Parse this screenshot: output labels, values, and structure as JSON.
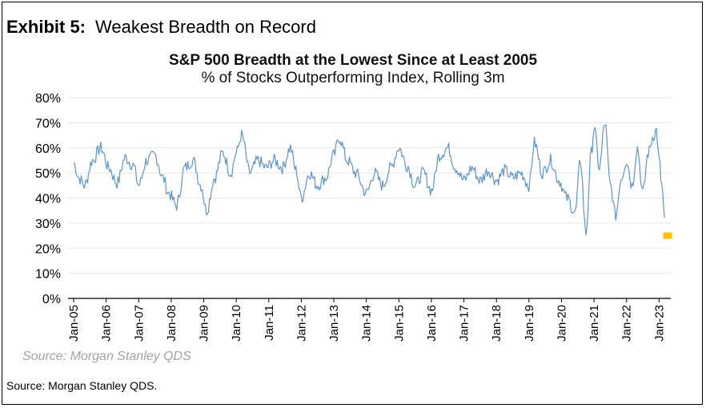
{
  "exhibit": {
    "number_label": "Exhibit 5:",
    "heading": "Weakest Breadth on Record"
  },
  "source_inner": "Source: Morgan Stanley QDS",
  "source_outer": "Source: Morgan Stanley QDS.",
  "colors": {
    "line": "#5b95d6",
    "marker": "#ffc000",
    "grid": "#e6e6e6",
    "axis": "#000000"
  },
  "chart_data": {
    "type": "line",
    "title": "S&P 500 Breadth at the Lowest Since at Least 2005",
    "subtitle": "% of Stocks Outperforming  Index, Rolling 3m",
    "ylim": [
      0,
      80
    ],
    "y_ticks": [
      "0%",
      "10%",
      "20%",
      "30%",
      "40%",
      "50%",
      "60%",
      "70%",
      "80%"
    ],
    "x_ticks": [
      "Jan-05",
      "Jan-06",
      "Jan-07",
      "Jan-08",
      "Jan-09",
      "Jan-10",
      "Jan-11",
      "Jan-12",
      "Jan-13",
      "Jan-14",
      "Jan-15",
      "Jan-16",
      "Jan-17",
      "Jan-18",
      "Jan-19",
      "Jan-20",
      "Jan-21",
      "Jan-22",
      "Jan-23"
    ],
    "x_range": [
      "2005-01",
      "2023-04"
    ],
    "grid": true,
    "series": [
      {
        "values": [
          [
            "2005-01",
            54
          ],
          [
            "2005-03",
            48
          ],
          [
            "2005-05",
            45
          ],
          [
            "2005-08",
            55
          ],
          [
            "2005-11",
            60
          ],
          [
            "2006-02",
            52
          ],
          [
            "2006-05",
            46
          ],
          [
            "2006-08",
            56
          ],
          [
            "2006-11",
            53
          ],
          [
            "2007-01",
            45
          ],
          [
            "2007-04",
            55
          ],
          [
            "2007-07",
            57
          ],
          [
            "2007-10",
            48
          ],
          [
            "2007-12",
            42
          ],
          [
            "2008-03",
            37
          ],
          [
            "2008-06",
            52
          ],
          [
            "2008-09",
            55
          ],
          [
            "2008-12",
            45
          ],
          [
            "2009-02",
            35
          ],
          [
            "2009-05",
            48
          ],
          [
            "2009-08",
            58
          ],
          [
            "2009-11",
            50
          ],
          [
            "2010-01",
            58
          ],
          [
            "2010-03",
            65
          ],
          [
            "2010-06",
            50
          ],
          [
            "2010-09",
            55
          ],
          [
            "2010-12",
            52
          ],
          [
            "2011-03",
            55
          ],
          [
            "2011-06",
            52
          ],
          [
            "2011-09",
            60
          ],
          [
            "2011-11",
            51
          ],
          [
            "2012-01",
            40
          ],
          [
            "2012-04",
            50
          ],
          [
            "2012-07",
            45
          ],
          [
            "2012-10",
            48
          ],
          [
            "2013-01",
            57
          ],
          [
            "2013-03",
            64
          ],
          [
            "2013-06",
            55
          ],
          [
            "2013-09",
            50
          ],
          [
            "2014-01",
            42
          ],
          [
            "2014-04",
            50
          ],
          [
            "2014-07",
            45
          ],
          [
            "2014-10",
            52
          ],
          [
            "2015-01",
            60
          ],
          [
            "2015-04",
            53
          ],
          [
            "2015-07",
            45
          ],
          [
            "2015-10",
            50
          ],
          [
            "2016-01",
            43
          ],
          [
            "2016-04",
            57
          ],
          [
            "2016-07",
            60
          ],
          [
            "2016-10",
            52
          ],
          [
            "2017-01",
            47
          ],
          [
            "2017-04",
            52
          ],
          [
            "2017-07",
            47
          ],
          [
            "2017-10",
            51
          ],
          [
            "2018-01",
            47
          ],
          [
            "2018-04",
            51
          ],
          [
            "2018-07",
            48
          ],
          [
            "2018-10",
            50
          ],
          [
            "2019-01",
            45
          ],
          [
            "2019-03",
            62
          ],
          [
            "2019-06",
            50
          ],
          [
            "2019-09",
            55
          ],
          [
            "2019-12",
            47
          ],
          [
            "2020-03",
            40
          ],
          [
            "2020-06",
            34
          ],
          [
            "2020-08",
            55
          ],
          [
            "2020-10",
            26
          ],
          [
            "2020-12",
            58
          ],
          [
            "2021-01",
            68
          ],
          [
            "2021-03",
            52
          ],
          [
            "2021-05",
            70
          ],
          [
            "2021-07",
            45
          ],
          [
            "2021-09",
            33
          ],
          [
            "2021-11",
            48
          ],
          [
            "2022-01",
            55
          ],
          [
            "2022-03",
            45
          ],
          [
            "2022-05",
            60
          ],
          [
            "2022-07",
            42
          ],
          [
            "2022-09",
            58
          ],
          [
            "2022-11",
            65
          ],
          [
            "2022-12",
            67
          ],
          [
            "2023-01",
            55
          ],
          [
            "2023-02",
            45
          ],
          [
            "2023-03",
            32
          ]
        ]
      }
    ],
    "marker": {
      "x": "2023-04",
      "y": 25
    }
  }
}
